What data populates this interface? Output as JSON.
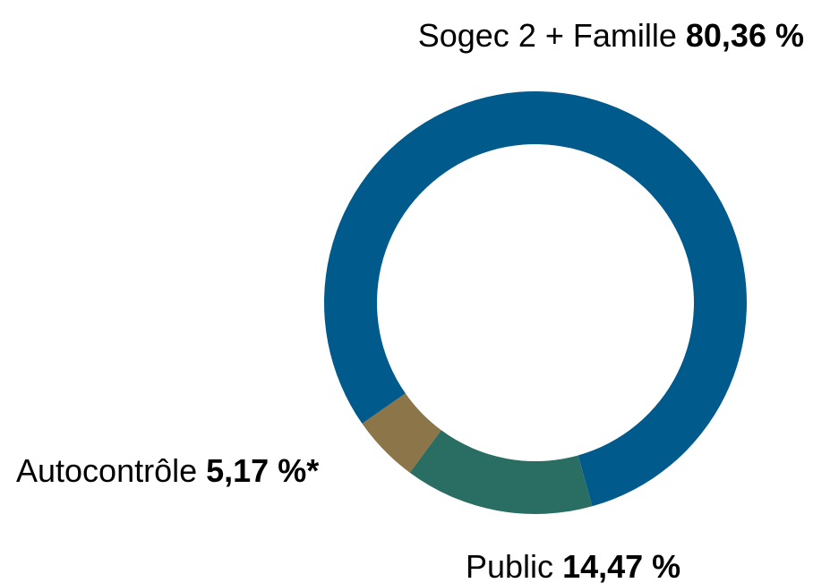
{
  "chart_data": {
    "type": "donut",
    "categories": [
      "Sogec 2 + Famille",
      "Public",
      "Autocontrôle"
    ],
    "values": [
      80.36,
      14.47,
      5.17
    ],
    "value_labels": [
      "80,36 %",
      "14,47 %",
      "5,17 %*"
    ],
    "colors": [
      "#005a8c",
      "#2a6e63",
      "#8b7549"
    ]
  }
}
